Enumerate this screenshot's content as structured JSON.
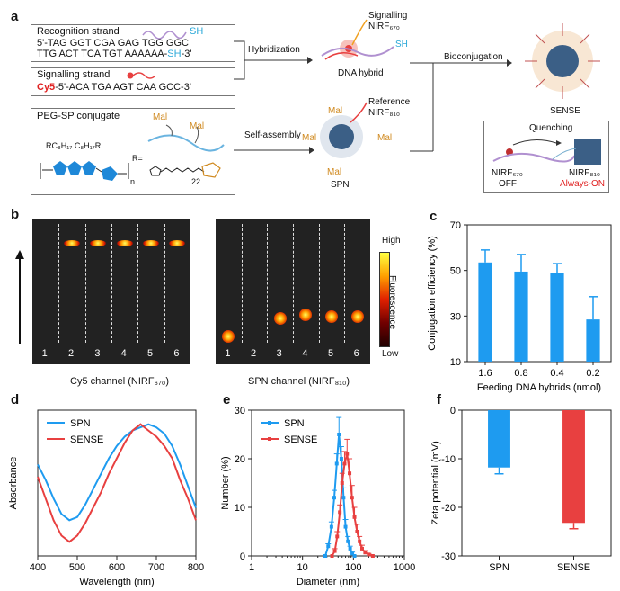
{
  "panels": {
    "a": "a",
    "b": "b",
    "c": "c",
    "d": "d",
    "e": "e",
    "f": "f"
  },
  "panel_a": {
    "recognition_title": "Recognition strand",
    "recognition_sh": "SH",
    "recognition_seq1": "5'-TAG GGT CGA GAG TGG GGC",
    "recognition_seq2a": "TTG ACT TCA TGT AAAAAA-",
    "recognition_seq2b": "SH",
    "recognition_seq2c": "-3'",
    "signalling_title": "Signalling strand",
    "signalling_cy5": "Cy5",
    "signalling_seq": "-5'-ACA TGA AGT CAA GCC-3'",
    "peg_title": "PEG-SP conjugate",
    "peg_mal1": "Mal",
    "peg_mal2": "Mal",
    "peg_r_sub": "RC₈H₁₇ C₈H₁₇R",
    "peg_r_eq": "R=",
    "peg_n": "n",
    "peg_22": "22",
    "hybridization": "Hybridization",
    "self_assembly": "Self-assembly",
    "bioconjugation": "Bioconjugation",
    "signalling_label1": "Signalling",
    "signalling_label2": "NIRF₆₇₀",
    "hybrid_sh": "SH",
    "dna_hybrid": "DNA hybrid",
    "reference_label1": "Reference",
    "reference_label2": "NIRF₈₁₀",
    "spn_mal_top": "Mal",
    "spn_mal_left": "Mal",
    "spn_mal_right": "Mal",
    "spn_mal_bottom": "Mal",
    "spn_label": "SPN",
    "sense_label": "SENSE",
    "quenching": "Quenching",
    "nirf670": "NIRF₆₇₀",
    "off": "OFF",
    "nirf810": "NIRF₈₁₀",
    "always_on": "Always-ON"
  },
  "panel_b": {
    "lanes": [
      "1",
      "2",
      "3",
      "4",
      "5",
      "6"
    ],
    "cy5_caption": "Cy5 channel (NIRF₆₇₀)",
    "spn_caption": "SPN channel (NIRF₈₁₀)",
    "scale_high": "High",
    "scale_low": "Low",
    "scale_title": "Fluorescence",
    "cy5_bands_lanes": [
      2,
      3,
      4,
      5,
      6
    ],
    "spn_bands_lanes": [
      1,
      3,
      4,
      5,
      6
    ]
  },
  "chart_data": [
    {
      "id": "c",
      "type": "bar",
      "categories": [
        "1.6",
        "0.8",
        "0.4",
        "0.2"
      ],
      "values": [
        53.5,
        49.5,
        49,
        28.5
      ],
      "errors": [
        5.5,
        7.5,
        4,
        10
      ],
      "ylabel": "Conjugation efficiency (%)",
      "xlabel": "Feeding DNA hybrids (nmol)",
      "ylim": [
        10,
        70
      ],
      "yticks": [
        10,
        30,
        50,
        70
      ],
      "color": "#1e9bf0"
    },
    {
      "id": "d",
      "type": "line",
      "xlabel": "Wavelength (nm)",
      "ylabel": "Absorbance",
      "xlim": [
        400,
        800
      ],
      "xticks": [
        400,
        500,
        600,
        700,
        800
      ],
      "series": [
        {
          "name": "SPN",
          "color": "#1e9bf0",
          "x": [
            400,
            420,
            440,
            460,
            480,
            500,
            520,
            540,
            560,
            580,
            600,
            620,
            640,
            660,
            680,
            700,
            720,
            740,
            760,
            780,
            800
          ],
          "y": [
            0.38,
            0.33,
            0.27,
            0.22,
            0.2,
            0.21,
            0.25,
            0.3,
            0.35,
            0.4,
            0.44,
            0.47,
            0.49,
            0.5,
            0.51,
            0.5,
            0.48,
            0.44,
            0.38,
            0.31,
            0.24
          ]
        },
        {
          "name": "SENSE",
          "color": "#e84040",
          "x": [
            400,
            420,
            440,
            460,
            480,
            500,
            520,
            540,
            560,
            580,
            600,
            620,
            640,
            660,
            680,
            700,
            720,
            740,
            760,
            780,
            800
          ],
          "y": [
            0.34,
            0.27,
            0.2,
            0.15,
            0.13,
            0.15,
            0.19,
            0.24,
            0.29,
            0.35,
            0.4,
            0.45,
            0.49,
            0.51,
            0.49,
            0.47,
            0.44,
            0.4,
            0.33,
            0.27,
            0.2
          ]
        }
      ]
    },
    {
      "id": "e",
      "type": "line",
      "xlabel": "Diameter (nm)",
      "ylabel": "Number (%)",
      "xscale": "log",
      "xlim": [
        1,
        1000
      ],
      "xticks": [
        1,
        10,
        100,
        1000
      ],
      "ylim": [
        0,
        30
      ],
      "yticks": [
        0,
        10,
        20,
        30
      ],
      "series": [
        {
          "name": "SPN",
          "color": "#1e9bf0",
          "x": [
            28,
            32,
            37,
            42,
            47,
            52,
            58,
            64,
            70,
            78,
            86,
            95,
            105
          ],
          "y": [
            0,
            2,
            6,
            12,
            19,
            25,
            20,
            12,
            6,
            3,
            1.5,
            0.5,
            0
          ],
          "err": [
            0,
            0.5,
            1,
            1.5,
            2,
            3.5,
            2.5,
            2,
            1.5,
            1,
            0.5,
            0.3,
            0
          ]
        },
        {
          "name": "SENSE",
          "color": "#e84040",
          "x": [
            38,
            43,
            48,
            54,
            60,
            67,
            75,
            84,
            94,
            105,
            118,
            132,
            148,
            170,
            200,
            240
          ],
          "y": [
            0,
            1,
            4,
            9,
            15,
            19,
            21,
            17,
            12,
            8,
            5,
            3,
            1.5,
            0.7,
            0.3,
            0
          ],
          "err": [
            0,
            0.5,
            1,
            1.5,
            2,
            2.5,
            3,
            3,
            2.5,
            2,
            1.5,
            1,
            0.7,
            0.4,
            0.2,
            0
          ]
        }
      ]
    },
    {
      "id": "f",
      "type": "bar",
      "categories": [
        "SPN",
        "SENSE"
      ],
      "values": [
        -11.8,
        -23.2
      ],
      "errors": [
        1.3,
        1.2
      ],
      "ylabel": "Zeta potential (mV)",
      "ylim": [
        -30,
        0
      ],
      "yticks": [
        -30,
        -20,
        -10,
        0
      ],
      "colors": [
        "#1e9bf0",
        "#e84040"
      ]
    }
  ]
}
